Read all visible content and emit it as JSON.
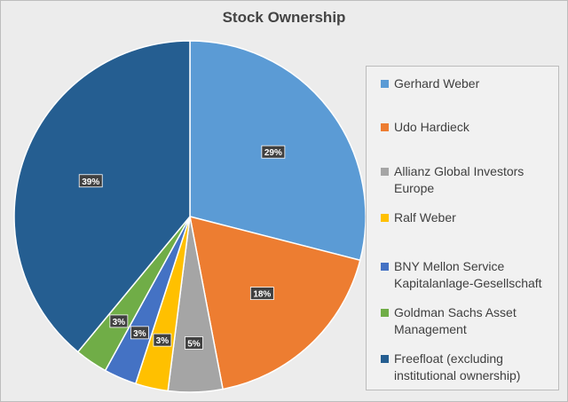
{
  "chart_data": {
    "type": "pie",
    "title": "Stock Ownership",
    "legend_position": "right",
    "slices": [
      {
        "label": "Gerhard Weber",
        "value": 29,
        "display": "29%",
        "color": "#5b9bd5"
      },
      {
        "label": "Udo Hardieck",
        "value": 18,
        "display": "18%",
        "color": "#ed7d31"
      },
      {
        "label": "Allianz Global Investors Europe",
        "value": 5,
        "display": "5%",
        "color": "#a5a5a5"
      },
      {
        "label": "Ralf Weber",
        "value": 3,
        "display": "3%",
        "color": "#ffc000"
      },
      {
        "label": "BNY Mellon Service Kapitalanlage-Gesellschaft",
        "value": 3,
        "display": "3%",
        "color": "#4472c4"
      },
      {
        "label": "Goldman Sachs Asset Management",
        "value": 3,
        "display": "3%",
        "color": "#70ad47"
      },
      {
        "label": "Freefloat  (excluding institutional ownership)",
        "value": 39,
        "display": "39%",
        "color": "#255e91"
      }
    ]
  }
}
